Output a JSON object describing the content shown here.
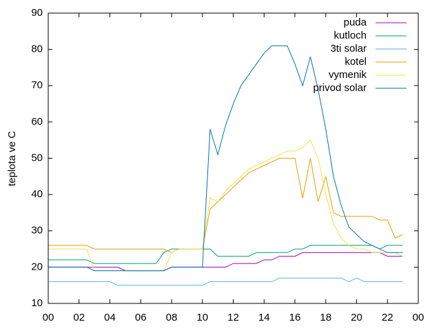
{
  "chart_data": {
    "type": "line",
    "ylabel": "teplota ve C",
    "x": [
      0,
      0.5,
      1,
      1.5,
      2,
      2.5,
      3,
      3.5,
      4,
      4.5,
      5,
      5.5,
      6,
      6.5,
      7,
      7.5,
      8,
      8.5,
      9,
      9.5,
      10,
      10.5,
      11,
      11.5,
      12,
      12.5,
      13,
      13.5,
      14,
      14.5,
      15,
      15.5,
      16,
      16.5,
      17,
      17.5,
      18,
      18.5,
      19,
      19.5,
      20,
      20.5,
      21,
      21.5,
      22,
      22.5,
      23
    ],
    "xlim": [
      0,
      24
    ],
    "xticks": [
      {
        "value": 0,
        "label": "00"
      },
      {
        "value": 2,
        "label": "02"
      },
      {
        "value": 4,
        "label": "04"
      },
      {
        "value": 6,
        "label": "06"
      },
      {
        "value": 8,
        "label": "08"
      },
      10,
      12,
      14,
      16,
      18,
      20,
      22,
      {
        "value": 24,
        "label": "00"
      }
    ],
    "ylim": [
      10,
      90
    ],
    "yticks": [
      10,
      20,
      30,
      40,
      50,
      60,
      70,
      80,
      90
    ],
    "grid": false,
    "legend": "top-right",
    "series": [
      {
        "name": "puda",
        "color": "#9400d3",
        "values": [
          20,
          20,
          20,
          20,
          20,
          20,
          20,
          20,
          20,
          20,
          19,
          19,
          19,
          19,
          19,
          19,
          20,
          20,
          20,
          20,
          20,
          20,
          20,
          20,
          21,
          21,
          21,
          21,
          22,
          22,
          23,
          23,
          23,
          24,
          24,
          24,
          24,
          24,
          24,
          24,
          24,
          24,
          24,
          24,
          23,
          23,
          23
        ]
      },
      {
        "name": "kutloch",
        "color": "#009e73",
        "values": [
          22,
          22,
          22,
          22,
          22,
          22,
          21,
          21,
          21,
          21,
          21,
          21,
          21,
          21,
          21,
          24,
          25,
          25,
          25,
          25,
          25,
          25,
          23,
          23,
          23,
          23,
          23,
          24,
          24,
          24,
          24,
          24,
          25,
          25,
          26,
          26,
          26,
          26,
          26,
          26,
          26,
          26,
          26,
          25,
          26,
          26,
          26
        ]
      },
      {
        "name": "3ti solar",
        "color": "#56b4e9",
        "values": [
          16,
          16,
          16,
          16,
          16,
          16,
          16,
          16,
          16,
          15,
          15,
          15,
          15,
          15,
          15,
          15,
          15,
          15,
          15,
          15,
          15,
          16,
          16,
          16,
          16,
          16,
          16,
          16,
          16,
          16,
          17,
          17,
          17,
          17,
          17,
          17,
          17,
          17,
          17,
          16,
          17,
          16,
          16,
          16,
          16,
          16,
          16
        ]
      },
      {
        "name": "kotel",
        "color": "#e69f00",
        "values": [
          26,
          26,
          26,
          26,
          26,
          26,
          25,
          25,
          25,
          25,
          25,
          25,
          25,
          25,
          25,
          25,
          24,
          25,
          25,
          25,
          25,
          36,
          38,
          40,
          42,
          44,
          46,
          47,
          48,
          49,
          50,
          50,
          50,
          39,
          50,
          38,
          45,
          35,
          34,
          34,
          34,
          34,
          34,
          33,
          33,
          28,
          29
        ]
      },
      {
        "name": "vymenik",
        "color": "#f0e442",
        "values": [
          25,
          25,
          25,
          25,
          25,
          25,
          19,
          19,
          19,
          19,
          19,
          19,
          19,
          19,
          19,
          19,
          24,
          25,
          25,
          25,
          25,
          39,
          38,
          41,
          43,
          45,
          47,
          48,
          49,
          50,
          51,
          52,
          52,
          53,
          55,
          50,
          40,
          32,
          28,
          26,
          25,
          25,
          24,
          24,
          24,
          24,
          23
        ]
      },
      {
        "name": "privod solar",
        "color": "#0072b2",
        "values": [
          20,
          20,
          20,
          20,
          20,
          20,
          19,
          19,
          19,
          19,
          19,
          19,
          19,
          19,
          19,
          19,
          20,
          20,
          20,
          20,
          20,
          58,
          51,
          59,
          65,
          70,
          73,
          76,
          79,
          81,
          81,
          81,
          76,
          70,
          78,
          69,
          58,
          45,
          37,
          31,
          29,
          27,
          26,
          25,
          24,
          24,
          24
        ]
      }
    ]
  }
}
